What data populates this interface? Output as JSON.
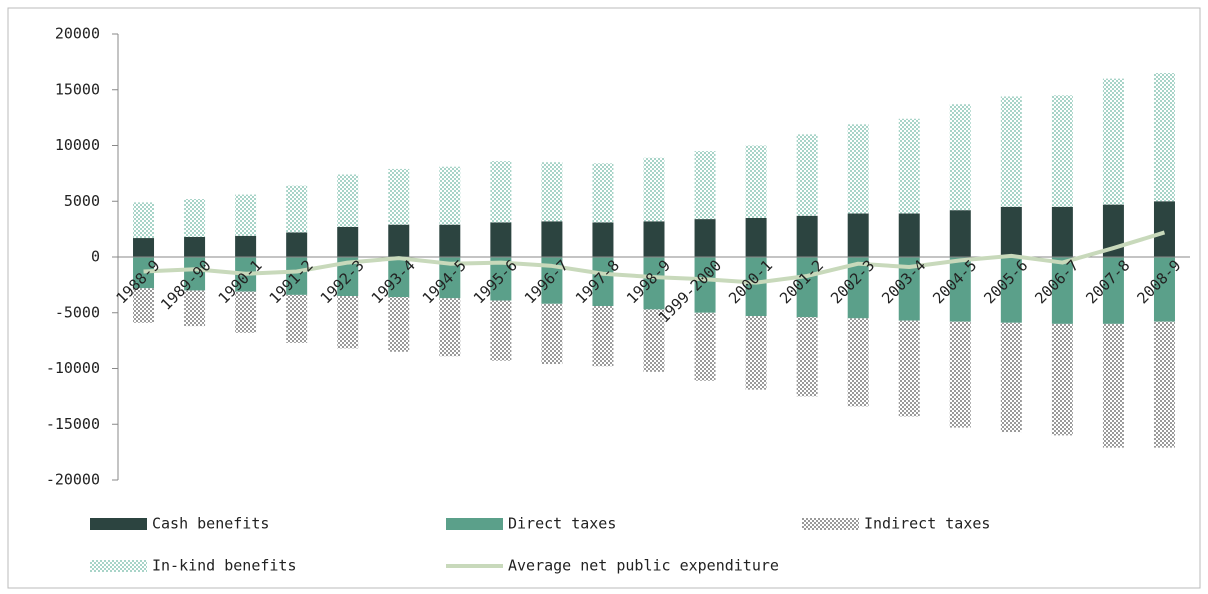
{
  "chart_data": {
    "type": "bar",
    "stacked": true,
    "categories": [
      "1988-9",
      "1989-90",
      "1990-1",
      "1991-2",
      "1992-3",
      "1993-4",
      "1994-5",
      "1995-6",
      "1996-7",
      "1997-8",
      "1998-9",
      "1999-2000",
      "2000-1",
      "2001-2",
      "2002-3",
      "2003-4",
      "2004-5",
      "2005-6",
      "2006-7",
      "2007-8",
      "2008-9"
    ],
    "series": [
      {
        "name": "Cash benefits",
        "color": "#2c4440",
        "values": [
          1700,
          1800,
          1900,
          2200,
          2700,
          2900,
          2900,
          3100,
          3200,
          3100,
          3200,
          3400,
          3500,
          3700,
          3900,
          3900,
          4200,
          4500,
          4500,
          4700,
          5000
        ]
      },
      {
        "name": "Direct taxes",
        "color": "#5ba08a",
        "values": [
          -2800,
          -3000,
          -3100,
          -3400,
          -3500,
          -3600,
          -3700,
          -3900,
          -4200,
          -4400,
          -4700,
          -5000,
          -5300,
          -5400,
          -5500,
          -5700,
          -5800,
          -5900,
          -6000,
          -6000,
          -5800
        ]
      },
      {
        "name": "Indirect taxes",
        "color": "#9a9a9a",
        "pattern": "dots",
        "values": [
          -3100,
          -3200,
          -3700,
          -4300,
          -4700,
          -4900,
          -5200,
          -5400,
          -5400,
          -5400,
          -5600,
          -6100,
          -6600,
          -7100,
          -7900,
          -8600,
          -9500,
          -9800,
          -10000,
          -11100,
          -11300
        ]
      },
      {
        "name": "In-kind benefits",
        "color": "#a8d4c8",
        "pattern": "dots",
        "values": [
          3200,
          3400,
          3700,
          4200,
          4700,
          5000,
          5200,
          5500,
          5300,
          5300,
          5700,
          6100,
          6500,
          7300,
          8000,
          8500,
          9500,
          9900,
          10000,
          11300,
          11500
        ]
      },
      {
        "name": "Average net public expenditure",
        "color": "#c8d9bb",
        "type": "line",
        "values": [
          -1300,
          -1100,
          -1500,
          -1300,
          -500,
          -100,
          -600,
          -500,
          -800,
          -1500,
          -1800,
          -2000,
          -2300,
          -1700,
          -600,
          -900,
          -300,
          100,
          -500,
          800,
          2200
        ]
      }
    ],
    "ylim": [
      -20000,
      20000
    ],
    "yticks": [
      -20000,
      -15000,
      -10000,
      -5000,
      0,
      5000,
      10000,
      15000,
      20000
    ],
    "grid": false
  }
}
